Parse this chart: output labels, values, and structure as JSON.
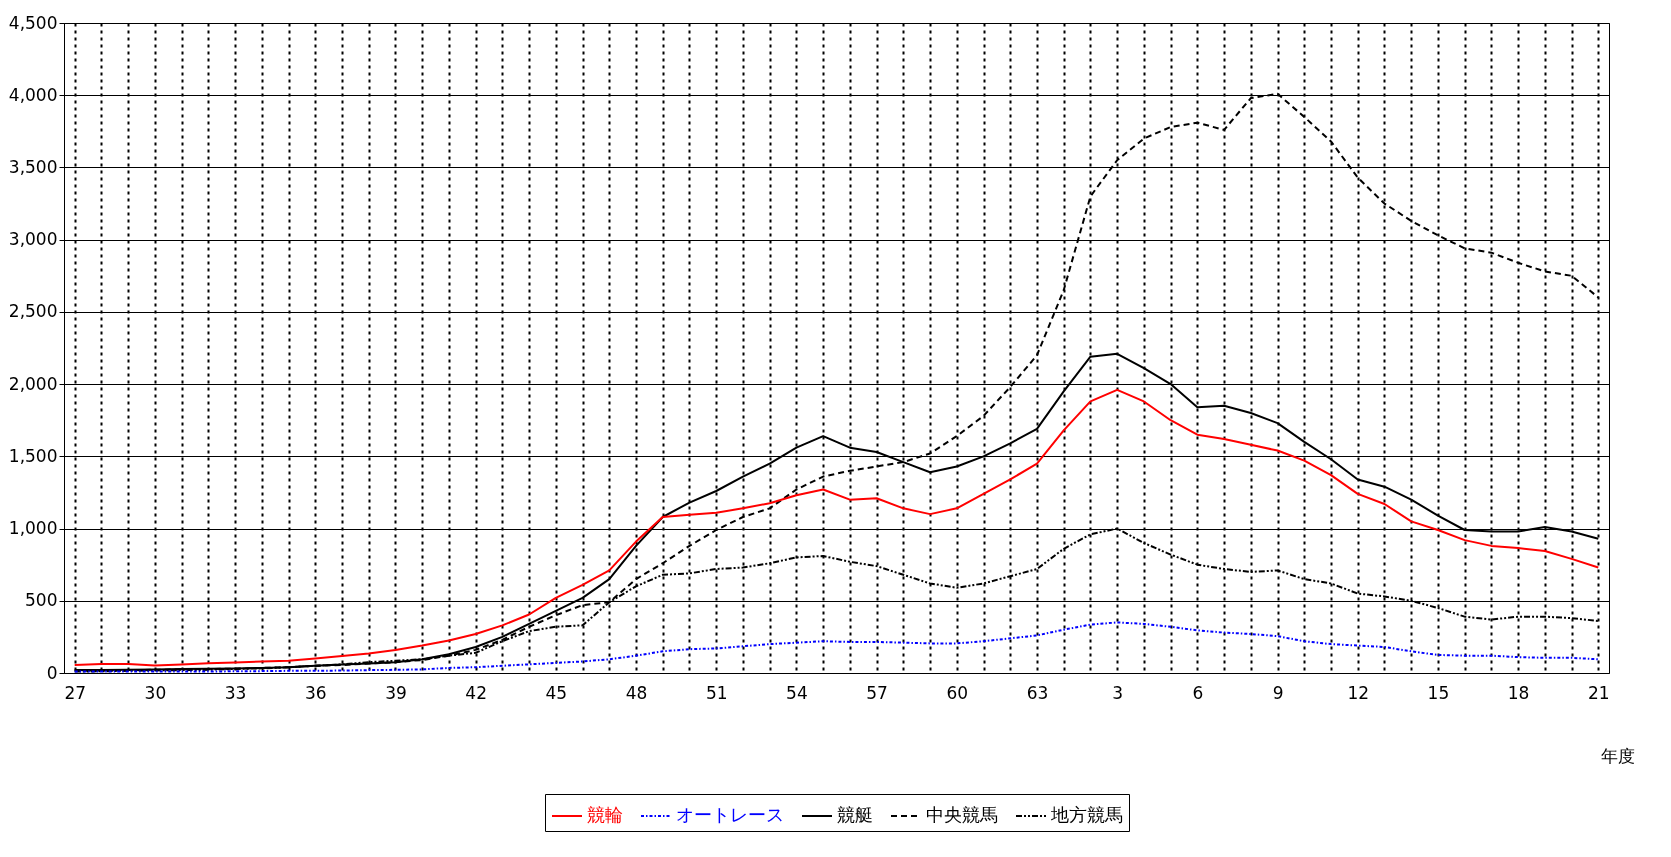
{
  "chart_data": {
    "type": "line",
    "xlabel": "年度",
    "categories": [
      "27",
      null,
      null,
      "30",
      null,
      null,
      "33",
      null,
      null,
      "36",
      null,
      null,
      "39",
      null,
      null,
      "42",
      null,
      null,
      "45",
      null,
      null,
      "48",
      null,
      null,
      "51",
      null,
      null,
      "54",
      null,
      null,
      "57",
      null,
      null,
      "60",
      null,
      null,
      "63",
      null,
      null,
      "3",
      null,
      null,
      "6",
      null,
      null,
      "9",
      null,
      null,
      "12",
      null,
      null,
      "15",
      null,
      null,
      "18",
      null,
      null,
      "21"
    ],
    "series": [
      {
        "name": "競輪",
        "color": "#ff0000",
        "line_style": "solid",
        "values": [
          55,
          62,
          62,
          52,
          58,
          68,
          72,
          80,
          85,
          100,
          118,
          135,
          160,
          190,
          225,
          270,
          330,
          405,
          520,
          610,
          710,
          910,
          1080,
          1095,
          1110,
          1140,
          1175,
          1230,
          1270,
          1200,
          1210,
          1140,
          1100,
          1140,
          1240,
          1340,
          1450,
          1680,
          1880,
          1960,
          1880,
          1750,
          1650,
          1620,
          1580,
          1540,
          1470,
          1370,
          1240,
          1170,
          1050,
          990,
          920,
          880,
          865,
          845,
          790,
          730
        ]
      },
      {
        "name": "オートレース",
        "color": "#0000ff",
        "line_style": "dashdot",
        "values": [
          10,
          10,
          10,
          10,
          10,
          10,
          12,
          13,
          15,
          15,
          17,
          20,
          22,
          25,
          35,
          40,
          50,
          60,
          70,
          80,
          95,
          120,
          150,
          165,
          170,
          185,
          200,
          210,
          220,
          215,
          215,
          210,
          205,
          205,
          220,
          240,
          260,
          300,
          335,
          350,
          340,
          320,
          295,
          280,
          270,
          255,
          220,
          200,
          190,
          180,
          150,
          125,
          120,
          120,
          110,
          105,
          105,
          95
        ]
      },
      {
        "name": "競艇",
        "color": "#000000",
        "line_style": "solid",
        "values": [
          20,
          20,
          22,
          25,
          28,
          30,
          32,
          35,
          40,
          50,
          58,
          65,
          75,
          95,
          130,
          180,
          250,
          340,
          430,
          520,
          650,
          880,
          1080,
          1180,
          1260,
          1360,
          1450,
          1560,
          1640,
          1560,
          1530,
          1460,
          1390,
          1430,
          1500,
          1590,
          1690,
          1950,
          2190,
          2210,
          2110,
          2000,
          1840,
          1850,
          1800,
          1730,
          1600,
          1480,
          1340,
          1290,
          1200,
          1090,
          990,
          980,
          980,
          1010,
          980,
          930
        ]
      },
      {
        "name": "中央競馬",
        "color": "#000000",
        "line_style": "dashed",
        "values": [
          15,
          18,
          20,
          22,
          25,
          28,
          30,
          35,
          40,
          50,
          55,
          65,
          75,
          90,
          120,
          160,
          230,
          320,
          400,
          470,
          490,
          650,
          760,
          880,
          990,
          1080,
          1140,
          1270,
          1360,
          1400,
          1430,
          1460,
          1520,
          1640,
          1780,
          1980,
          2200,
          2650,
          3300,
          3550,
          3700,
          3780,
          3810,
          3760,
          3980,
          4010,
          3850,
          3680,
          3430,
          3250,
          3130,
          3030,
          2940,
          2910,
          2840,
          2780,
          2750,
          2600
        ]
      },
      {
        "name": "地方競馬",
        "color": "#000000",
        "line_style": "dashdotdot",
        "values": [
          10,
          12,
          15,
          18,
          20,
          22,
          28,
          32,
          40,
          50,
          60,
          75,
          85,
          95,
          120,
          140,
          220,
          290,
          320,
          330,
          490,
          600,
          680,
          690,
          720,
          730,
          760,
          800,
          810,
          770,
          740,
          680,
          620,
          590,
          620,
          670,
          720,
          860,
          960,
          1000,
          900,
          820,
          750,
          720,
          700,
          710,
          650,
          620,
          550,
          530,
          500,
          450,
          390,
          370,
          390,
          390,
          380,
          360
        ]
      }
    ],
    "ylim": [
      0,
      4500
    ],
    "yticks": [
      0,
      500,
      {
        "value": 1000,
        "label": "1,000"
      },
      {
        "value": 1500,
        "label": "1,500"
      },
      {
        "value": 2000,
        "label": "2,000"
      },
      {
        "value": 2500,
        "label": "2,500"
      },
      {
        "value": 3000,
        "label": "3,000"
      },
      {
        "value": 3500,
        "label": "3,500"
      },
      {
        "value": 4000,
        "label": "4,000"
      },
      {
        "value": 4500,
        "label": "4,500"
      }
    ],
    "grid": true,
    "legend": "bottom",
    "marker": "none"
  }
}
